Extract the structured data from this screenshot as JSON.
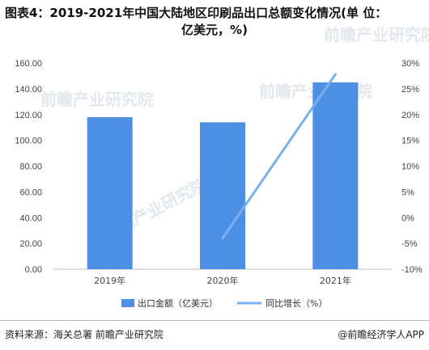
{
  "chart_data": {
    "type": "bar",
    "title": "图表4：2019-2021年中国大陆地区印刷品出口总额变化情况(单 位：",
    "title_line2": "亿美元，%)",
    "categories": [
      "2019年",
      "2020年",
      "2021年"
    ],
    "series": [
      {
        "name": "出口金额（亿美元）",
        "type": "bar",
        "axis": "left",
        "color": "#4e8fe6",
        "values": [
          118.0,
          114.0,
          145.0
        ]
      },
      {
        "name": "同比增长（%）",
        "type": "line",
        "axis": "right",
        "color": "#7bb0ee",
        "values": [
          null,
          -4.0,
          27.8
        ]
      }
    ],
    "y_left": {
      "ticks": [
        "0.00",
        "20.00",
        "40.00",
        "60.00",
        "80.00",
        "100.00",
        "120.00",
        "140.00",
        "160.00"
      ],
      "ylim": [
        0,
        160
      ]
    },
    "y_right": {
      "ticks": [
        "-10%",
        "-5%",
        "0%",
        "5%",
        "10%",
        "15%",
        "20%",
        "25%",
        "30%"
      ],
      "ylim": [
        -10,
        30
      ]
    },
    "grid": false,
    "legend_position": "bottom"
  },
  "footer": {
    "source": "资料来源：海关总署 前瞻产业研究院",
    "brand": "@前瞻经济学人APP"
  },
  "watermark": "前瞻产业研究院"
}
